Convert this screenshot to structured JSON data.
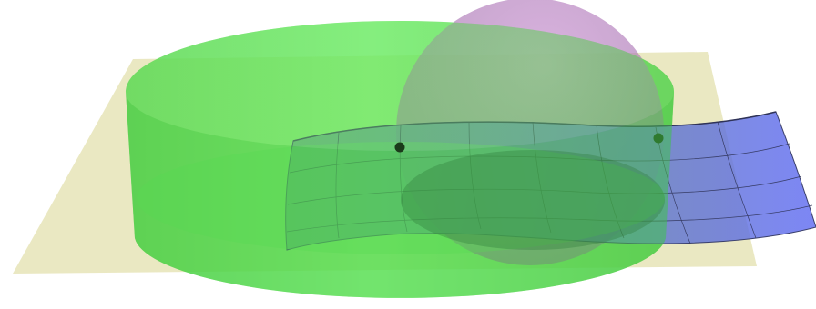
{
  "scene": {
    "type": "3d-surfaces",
    "objects": [
      {
        "kind": "plane",
        "color": "#d8d58f"
      },
      {
        "kind": "cylinder",
        "color": "#52e34e"
      },
      {
        "kind": "sphere",
        "color": "#b56cbc"
      },
      {
        "kind": "curved-surface-patch",
        "color": "#7a7ef0",
        "grid": true
      },
      {
        "kind": "point",
        "color": "#1b3a1b"
      },
      {
        "kind": "point",
        "color": "#2f7a2f"
      }
    ]
  }
}
